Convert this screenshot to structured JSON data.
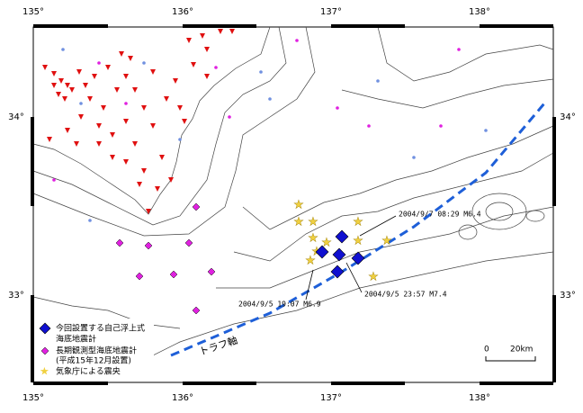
{
  "axes": {
    "longitude_labels": [
      "135°",
      "136°",
      "137°",
      "138°"
    ],
    "latitude_labels": [
      "34°",
      "33°"
    ]
  },
  "legend": {
    "items": [
      {
        "lines": [
          "今回設置する自己浮上式",
          "海底地震計"
        ]
      },
      {
        "lines": [
          "長期観測型海底地震計",
          "(平成15年12月設置)"
        ]
      },
      {
        "lines": [
          "気象庁による震央"
        ]
      }
    ]
  },
  "annotations": [
    "2004/9/7 08:29 M6.4",
    "2004/9/5 23:57 M7.4",
    "2004/9/5 19:07 M6.9"
  ],
  "trough_label": "トラフ軸",
  "scale": {
    "start": "0",
    "end": "20km"
  }
}
